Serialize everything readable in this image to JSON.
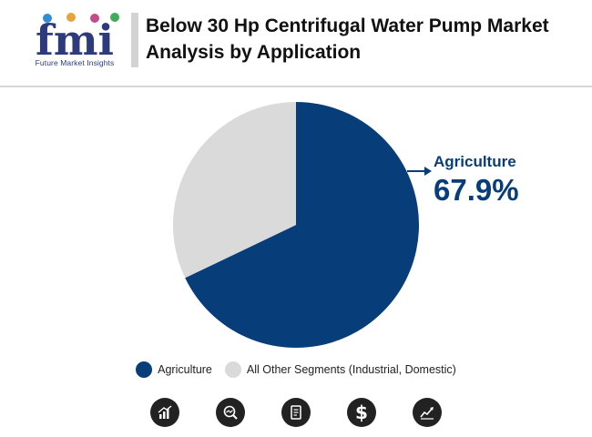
{
  "header": {
    "logo_text": "fmi",
    "logo_tagline": "Future Market Insights",
    "title": "Below 30 Hp Centrifugal Water Pump Market Analysis by Application"
  },
  "callout": {
    "label": "Agriculture",
    "value": "67.9%"
  },
  "chart_data": {
    "type": "pie",
    "title": "Below 30 Hp Centrifugal Water Pump Market Analysis by Application",
    "slices": [
      {
        "label": "Agriculture",
        "value": 67.9,
        "color": "#073e7a"
      },
      {
        "label": "All Other Segments (Industrial, Domestic)",
        "value": 32.1,
        "color": "#dadada"
      }
    ],
    "legend_position": "bottom",
    "annotation": {
      "label": "Agriculture",
      "value": "67.9%"
    }
  },
  "legend": {
    "items": [
      {
        "label": "Agriculture",
        "color": "#073e7a"
      },
      {
        "label": "All Other Segments (Industrial, Domestic)",
        "color": "#dadada"
      }
    ]
  },
  "footer_icons": [
    {
      "name": "bar-chart-icon"
    },
    {
      "name": "trend-magnifier-icon"
    },
    {
      "name": "report-document-icon"
    },
    {
      "name": "dollar-icon"
    },
    {
      "name": "line-growth-icon"
    }
  ],
  "colors": {
    "brand": "#073e7a",
    "secondary": "#dadada",
    "logo": "#2d3a7c"
  }
}
